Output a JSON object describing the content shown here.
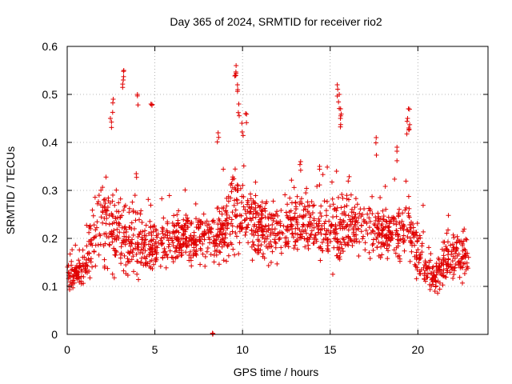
{
  "chart_data": {
    "type": "scatter",
    "title": "Day 365 of 2024, SRMTID for receiver rio2",
    "xlabel": "GPS time / hours",
    "ylabel": "SRMTID / TECUs",
    "xlim": [
      0,
      24
    ],
    "ylim": [
      0,
      0.6
    ],
    "xticks": [
      0,
      5,
      10,
      15,
      20
    ],
    "xtick_labels": [
      "0",
      "5",
      "10",
      "15",
      "20"
    ],
    "yticks": [
      0,
      0.1,
      0.2,
      0.3,
      0.4,
      0.5,
      0.6
    ],
    "ytick_labels": [
      "0",
      "0.1",
      "0.2",
      "0.3",
      "0.4",
      "0.5",
      "0.6"
    ],
    "grid": true,
    "marker": "+",
    "color": "#e00000",
    "profile": [
      [
        0.0,
        0.12,
        0.03
      ],
      [
        0.5,
        0.12,
        0.03
      ],
      [
        1.0,
        0.14,
        0.04
      ],
      [
        1.5,
        0.2,
        0.08
      ],
      [
        2.0,
        0.24,
        0.09
      ],
      [
        2.5,
        0.22,
        0.09
      ],
      [
        3.0,
        0.2,
        0.1
      ],
      [
        3.5,
        0.19,
        0.09
      ],
      [
        4.0,
        0.2,
        0.08
      ],
      [
        4.5,
        0.19,
        0.07
      ],
      [
        5.0,
        0.18,
        0.05
      ],
      [
        5.5,
        0.19,
        0.05
      ],
      [
        6.0,
        0.19,
        0.05
      ],
      [
        6.5,
        0.2,
        0.05
      ],
      [
        7.0,
        0.2,
        0.06
      ],
      [
        7.5,
        0.2,
        0.05
      ],
      [
        8.0,
        0.21,
        0.05
      ],
      [
        8.5,
        0.2,
        0.05
      ],
      [
        9.0,
        0.22,
        0.07
      ],
      [
        9.5,
        0.26,
        0.1
      ],
      [
        10.0,
        0.27,
        0.09
      ],
      [
        10.5,
        0.24,
        0.07
      ],
      [
        11.0,
        0.22,
        0.06
      ],
      [
        11.5,
        0.21,
        0.06
      ],
      [
        12.0,
        0.22,
        0.06
      ],
      [
        12.5,
        0.22,
        0.06
      ],
      [
        13.0,
        0.23,
        0.06
      ],
      [
        13.5,
        0.23,
        0.07
      ],
      [
        14.0,
        0.22,
        0.06
      ],
      [
        14.5,
        0.21,
        0.06
      ],
      [
        15.0,
        0.21,
        0.07
      ],
      [
        15.5,
        0.22,
        0.08
      ],
      [
        16.0,
        0.23,
        0.07
      ],
      [
        16.5,
        0.23,
        0.06
      ],
      [
        17.0,
        0.23,
        0.06
      ],
      [
        17.5,
        0.22,
        0.06
      ],
      [
        18.0,
        0.21,
        0.06
      ],
      [
        18.5,
        0.21,
        0.06
      ],
      [
        19.0,
        0.21,
        0.07
      ],
      [
        19.5,
        0.22,
        0.08
      ],
      [
        20.0,
        0.17,
        0.06
      ],
      [
        20.5,
        0.14,
        0.04
      ],
      [
        21.0,
        0.11,
        0.04
      ],
      [
        21.5,
        0.16,
        0.05
      ],
      [
        22.0,
        0.16,
        0.05
      ],
      [
        22.5,
        0.16,
        0.05
      ],
      [
        22.9,
        0.15,
        0.04
      ]
    ],
    "peaks": [
      [
        3.2,
        0.55
      ],
      [
        3.2,
        0.53
      ],
      [
        4.0,
        0.5
      ],
      [
        4.8,
        0.48
      ],
      [
        2.6,
        0.49
      ],
      [
        2.5,
        0.45
      ],
      [
        9.6,
        0.56
      ],
      [
        9.6,
        0.54
      ],
      [
        9.7,
        0.52
      ],
      [
        9.8,
        0.48
      ],
      [
        10.2,
        0.46
      ],
      [
        10.0,
        0.44
      ],
      [
        15.4,
        0.52
      ],
      [
        15.5,
        0.5
      ],
      [
        15.6,
        0.47
      ],
      [
        15.6,
        0.45
      ],
      [
        19.5,
        0.47
      ],
      [
        19.4,
        0.45
      ],
      [
        19.5,
        0.43
      ],
      [
        8.6,
        0.42
      ],
      [
        17.6,
        0.41
      ],
      [
        18.8,
        0.39
      ],
      [
        13.3,
        0.36
      ],
      [
        14.4,
        0.35
      ]
    ],
    "outliers": [
      [
        8.3,
        0.0
      ]
    ]
  }
}
